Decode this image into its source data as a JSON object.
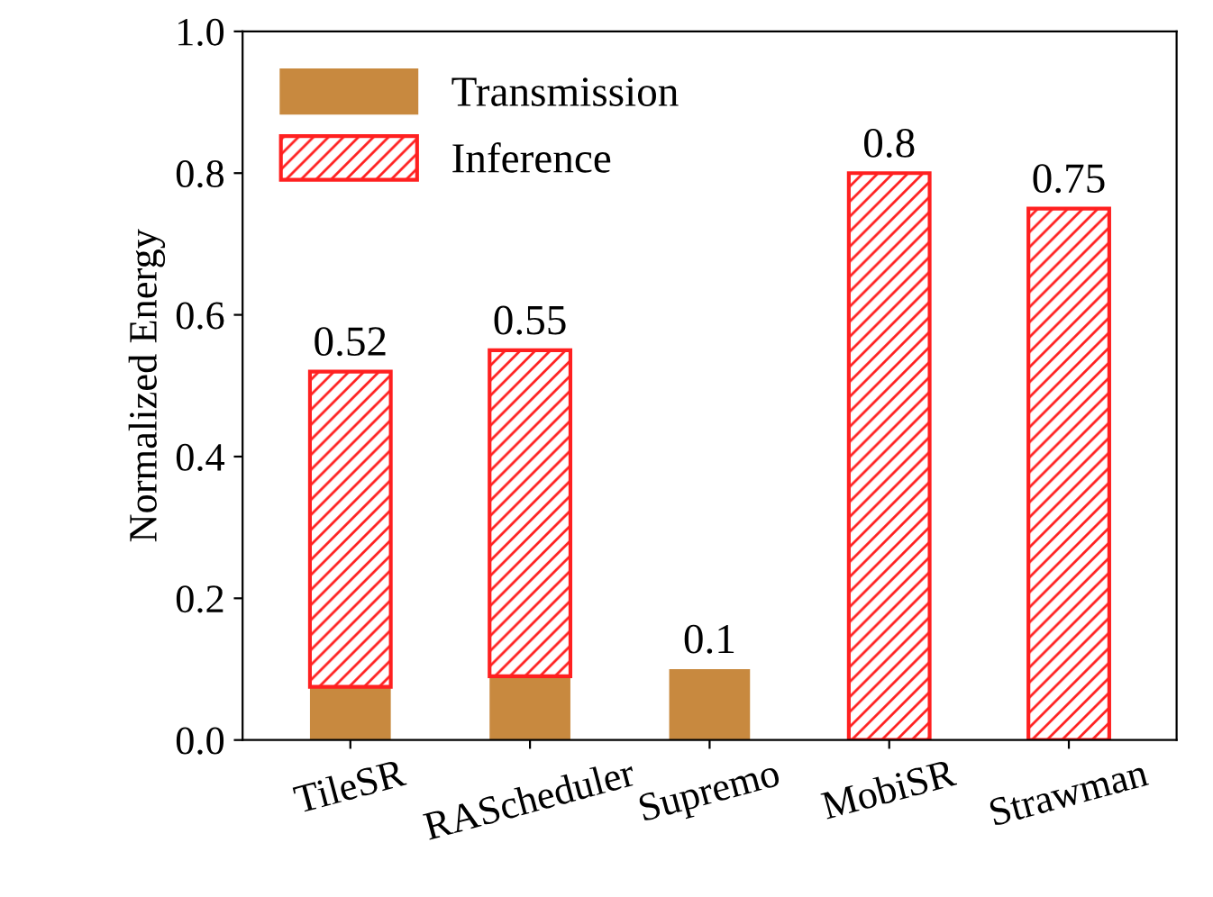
{
  "chart_data": {
    "type": "bar",
    "stacked": true,
    "ylabel": "Normalized Energy",
    "categories": [
      "TileSR",
      "RAScheduler",
      "Supremo",
      "MobiSR",
      "Strawman"
    ],
    "series": [
      {
        "name": "Transmission",
        "color": "#c8893f",
        "values": [
          0.075,
          0.09,
          0.1,
          0,
          0
        ]
      },
      {
        "name": "Inference",
        "color": "#ff2020",
        "values": [
          0.445,
          0.46,
          0,
          0.8,
          0.75
        ]
      }
    ],
    "totals": [
      "0.52",
      "0.55",
      "0.1",
      "0.8",
      "0.75"
    ],
    "ylim": [
      0,
      1.0
    ],
    "yticks": [
      {
        "value": 0,
        "label": "0.0"
      },
      0.2,
      0.4,
      0.6,
      0.8,
      {
        "value": 1,
        "label": "1.0"
      }
    ],
    "grid": false,
    "legend": "top left"
  }
}
